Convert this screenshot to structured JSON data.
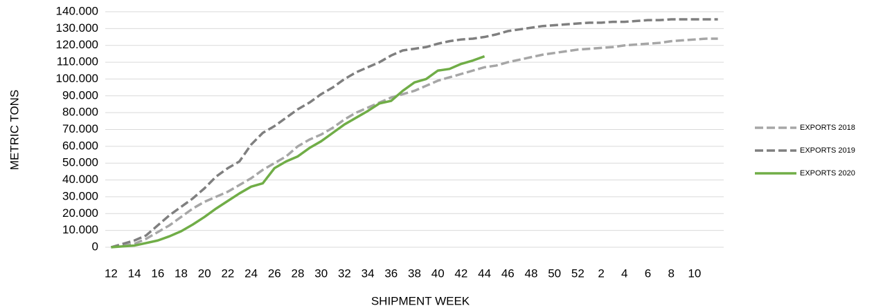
{
  "chart_data": {
    "type": "line",
    "y_label": "METRIC TONS",
    "x_label": "SHIPMENT WEEK",
    "categories": [
      "12",
      null,
      "14",
      null,
      "16",
      null,
      "18",
      null,
      "20",
      null,
      "22",
      null,
      "24",
      null,
      "26",
      null,
      "28",
      null,
      "30",
      null,
      "32",
      null,
      "34",
      null,
      "36",
      null,
      "38",
      null,
      "40",
      null,
      "42",
      null,
      "44",
      null,
      "46",
      null,
      "48",
      null,
      "50",
      null,
      "52",
      null,
      "2",
      null,
      "4",
      null,
      "6",
      null,
      "8",
      null,
      "10",
      null,
      null
    ],
    "series": [
      {
        "name": "EXPORTS 2018",
        "color": "#a6a6a6",
        "line_style": "dashed",
        "values": [
          0,
          1000,
          2000,
          5000,
          9000,
          13000,
          18000,
          23000,
          27000,
          30000,
          33000,
          37000,
          41000,
          46000,
          50000,
          54000,
          60000,
          64000,
          67000,
          71000,
          76000,
          80000,
          83000,
          86000,
          89000,
          91000,
          93000,
          96000,
          99000,
          101000,
          103000,
          105000,
          107000,
          108000,
          110000,
          111500,
          113000,
          114500,
          115500,
          116500,
          117500,
          118000,
          118500,
          119000,
          120000,
          120500,
          121000,
          121500,
          122500,
          123000,
          123500,
          124000,
          124000
        ]
      },
      {
        "name": "EXPORTS 2019",
        "color": "#7f7f7f",
        "line_style": "dashed",
        "values": [
          0,
          2000,
          4000,
          7000,
          13000,
          19000,
          24000,
          29000,
          35000,
          42000,
          47000,
          51000,
          61000,
          68000,
          72000,
          77000,
          82000,
          86000,
          91000,
          95000,
          100000,
          104000,
          107000,
          110000,
          114000,
          117000,
          118000,
          119000,
          121000,
          122500,
          123500,
          124000,
          125000,
          126500,
          128500,
          129500,
          130500,
          131500,
          132000,
          132500,
          133000,
          133500,
          133500,
          134000,
          134000,
          134500,
          135000,
          135000,
          135500,
          135500,
          135500,
          135500,
          135500
        ]
      },
      {
        "name": "EXPORTS 2020",
        "color": "#70ad47",
        "line_style": "solid",
        "values": [
          0,
          500,
          1000,
          2500,
          4000,
          6500,
          9500,
          13500,
          18000,
          23000,
          27500,
          32000,
          36000,
          38000,
          47000,
          51000,
          54000,
          59000,
          63000,
          68000,
          73000,
          77000,
          81000,
          85500,
          87000,
          93000,
          98000,
          100000,
          105000,
          106000,
          109000,
          111000,
          113500,
          null,
          null,
          null,
          null,
          null,
          null,
          null,
          null,
          null,
          null,
          null,
          null,
          null,
          null,
          null,
          null,
          null,
          null,
          null,
          null
        ]
      }
    ],
    "ylim": [
      0,
      140000
    ],
    "yticks": [
      0,
      {
        "value": 10000,
        "label": "10.000"
      },
      {
        "value": 20000,
        "label": "20.000"
      },
      {
        "value": 30000,
        "label": "30.000"
      },
      {
        "value": 40000,
        "label": "40.000"
      },
      {
        "value": 50000,
        "label": "50.000"
      },
      {
        "value": 60000,
        "label": "60.000"
      },
      {
        "value": 70000,
        "label": "70.000"
      },
      {
        "value": 80000,
        "label": "80.000"
      },
      {
        "value": 90000,
        "label": "90.000"
      },
      {
        "value": 100000,
        "label": "100.000"
      },
      {
        "value": 110000,
        "label": "110.000"
      },
      {
        "value": 120000,
        "label": "120.000"
      },
      {
        "value": 130000,
        "label": "130.000"
      },
      {
        "value": 140000,
        "label": "140.000"
      }
    ],
    "grid": true,
    "legend": "right"
  }
}
